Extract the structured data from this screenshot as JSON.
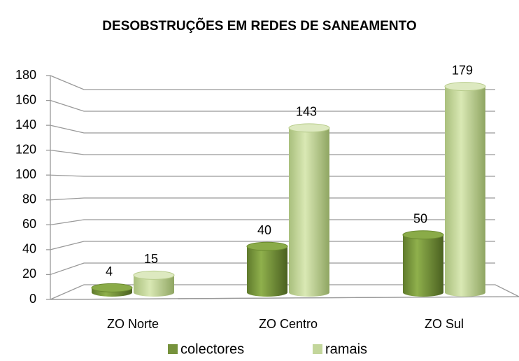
{
  "chart_data": {
    "type": "bar3d",
    "title": "DESOBSTRUÇÕES EM REDES DE SANEAMENTO",
    "categories": [
      "ZO Norte",
      "ZO Centro",
      "ZO Sul"
    ],
    "series": [
      {
        "name": "colectores",
        "color": "#76923c",
        "values": [
          4,
          40,
          50
        ]
      },
      {
        "name": "ramais",
        "color": "#c3d69b",
        "values": [
          15,
          143,
          179
        ]
      }
    ],
    "ylim": [
      0,
      180
    ],
    "yticks": [
      0,
      20,
      40,
      60,
      80,
      100,
      120,
      140,
      160,
      180
    ],
    "grid": true,
    "legend": "bottom"
  }
}
